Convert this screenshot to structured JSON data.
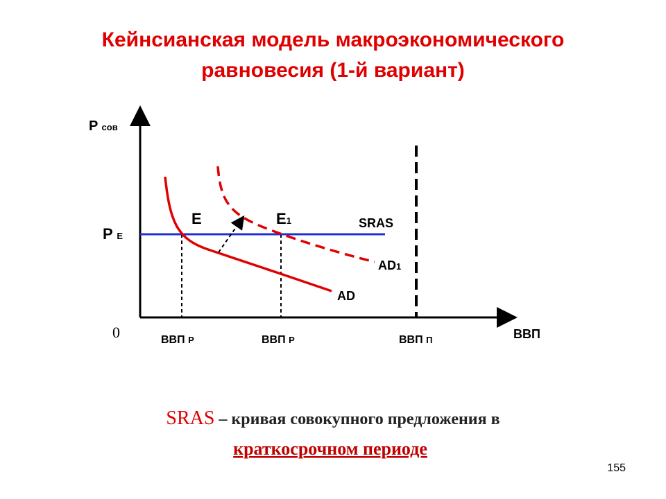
{
  "title": {
    "lines": [
      "Кейнсианская модель макроэкономического",
      "равновесия (1-й вариант)"
    ]
  },
  "diagram": {
    "y_axis_label": {
      "main": "P",
      "sub": "сов"
    },
    "x_axis_label": "ВВП",
    "origin": "0",
    "price_level": {
      "main": "P",
      "sub": "E"
    },
    "points": [
      {
        "main": "E"
      },
      {
        "main": "E",
        "sub": "1"
      }
    ],
    "curves": [
      {
        "main": "SRAS"
      },
      {
        "main": "AD",
        "sub": "1"
      },
      {
        "main": "AD"
      }
    ],
    "x_ticks": [
      {
        "main": "ВВП",
        "sub": "Р"
      },
      {
        "main": "ВВП",
        "sub": "Р"
      },
      {
        "main": "ВВП",
        "sub": "П"
      }
    ]
  },
  "caption": {
    "term": "SRAS",
    "text": "– кривая совокупного предложения в",
    "emphasis": "краткосрочном периоде"
  },
  "page_number": "155"
}
